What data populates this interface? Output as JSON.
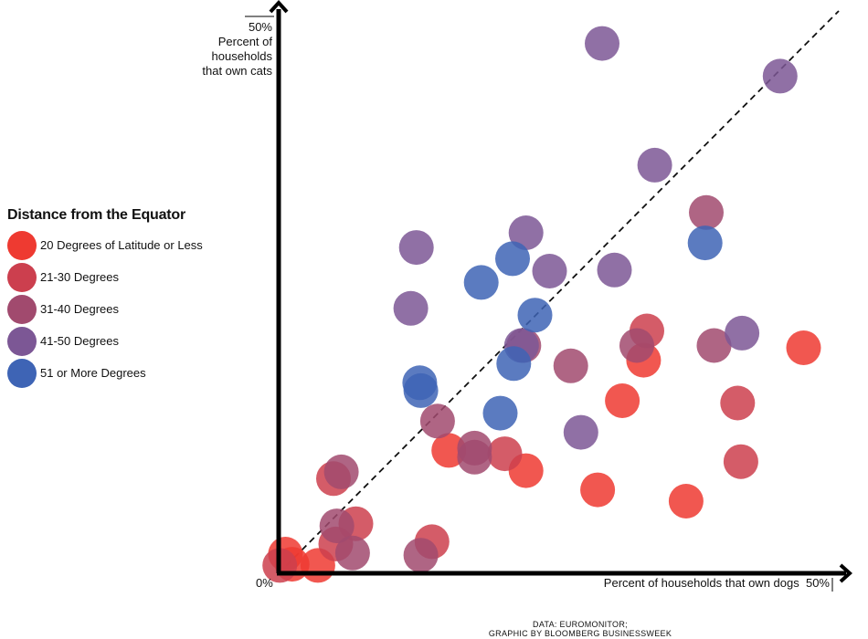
{
  "chart_data": {
    "type": "scatter",
    "xlabel": "Percent of households that own dogs",
    "ylabel_lines": [
      "50%",
      "Percent of",
      "households",
      "that own cats"
    ],
    "xmax_label": "50%",
    "origin_label": "0%",
    "xlim": [
      0,
      50
    ],
    "ylim": [
      0,
      50
    ],
    "reference_line": "y = x (dashed diagonal)",
    "legend_title": "Distance from the Equator",
    "legend_placement": "left",
    "source_lines": [
      "DATA: EUROMONITOR;",
      "GRAPHIC BY BLOOMBERG BUSINESSWEEK"
    ],
    "series": [
      {
        "name": "20 Degrees of Latitude or Less",
        "color": "#ee3a31",
        "points": [
          [
            0.6,
            1.7
          ],
          [
            1.2,
            0.8
          ],
          [
            3.5,
            0.7
          ],
          [
            15.2,
            10.9
          ],
          [
            22.1,
            9.1
          ],
          [
            28.5,
            7.4
          ],
          [
            30.7,
            15.3
          ],
          [
            32.6,
            18.9
          ],
          [
            36.4,
            6.4
          ],
          [
            46.9,
            20.0
          ]
        ]
      },
      {
        "name": "21-30 Degrees",
        "color": "#cc3f4e",
        "points": [
          [
            0.1,
            0.7
          ],
          [
            4.9,
            8.4
          ],
          [
            5.1,
            2.6
          ],
          [
            6.9,
            4.4
          ],
          [
            13.7,
            2.8
          ],
          [
            20.2,
            10.6
          ],
          [
            32.9,
            21.5
          ],
          [
            41.0,
            15.1
          ],
          [
            41.3,
            9.9
          ]
        ]
      },
      {
        "name": "31-40 Degrees",
        "color": "#a14a6e",
        "points": [
          [
            5.2,
            4.2
          ],
          [
            5.6,
            9.0
          ],
          [
            6.6,
            1.8
          ],
          [
            12.7,
            1.6
          ],
          [
            14.2,
            13.5
          ],
          [
            17.5,
            11.1
          ],
          [
            17.5,
            10.3
          ],
          [
            21.9,
            20.2
          ],
          [
            26.1,
            18.4
          ],
          [
            32.0,
            20.2
          ],
          [
            38.2,
            32.0
          ],
          [
            38.9,
            20.2
          ]
        ]
      },
      {
        "name": "41-50 Degrees",
        "color": "#7c5795",
        "points": [
          [
            11.8,
            23.5
          ],
          [
            12.3,
            28.9
          ],
          [
            21.7,
            20.2
          ],
          [
            22.1,
            30.2
          ],
          [
            24.2,
            26.8
          ],
          [
            27.0,
            12.5
          ],
          [
            28.9,
            47.0
          ],
          [
            30.0,
            26.9
          ],
          [
            33.6,
            36.2
          ],
          [
            41.4,
            21.3
          ],
          [
            44.8,
            44.1
          ]
        ]
      },
      {
        "name": "51 or More Degrees",
        "color": "#3e64b5",
        "points": [
          [
            12.6,
            16.9
          ],
          [
            12.7,
            16.2
          ],
          [
            18.1,
            25.8
          ],
          [
            19.8,
            14.2
          ],
          [
            20.9,
            27.9
          ],
          [
            21.0,
            18.6
          ],
          [
            22.9,
            22.9
          ],
          [
            38.1,
            29.3
          ]
        ]
      }
    ]
  }
}
